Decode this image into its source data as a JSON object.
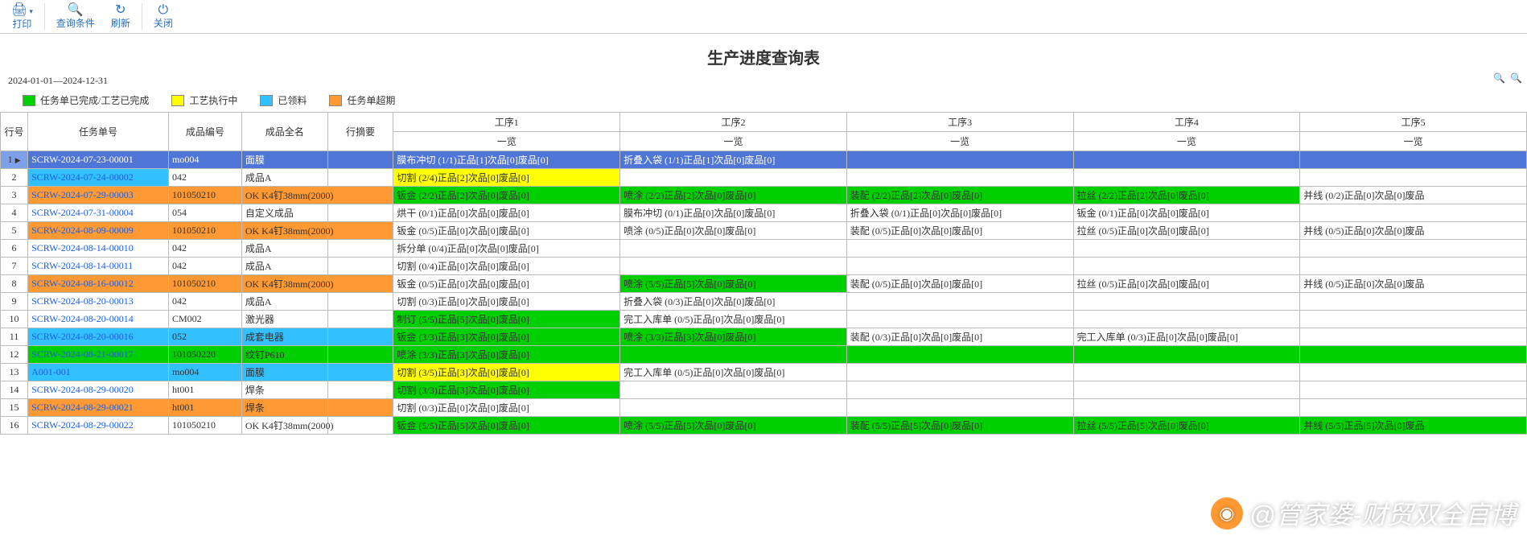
{
  "toolbar": {
    "print": {
      "label": "打印"
    },
    "query": {
      "label": "查询条件"
    },
    "refresh": {
      "label": "刷新"
    },
    "close": {
      "label": "关闭"
    }
  },
  "title": "生产进度查询表",
  "date_range": "2024-01-01—2024-12-31",
  "legend": [
    {
      "color": "#00d000",
      "label": "任务单已完成/工艺已完成"
    },
    {
      "color": "#ffff00",
      "label": "工艺执行中"
    },
    {
      "color": "#32c0ff",
      "label": "已领料"
    },
    {
      "color": "#ff9933",
      "label": "任务单超期"
    }
  ],
  "colors": {
    "green": "#00d000",
    "yellow": "#ffff00",
    "blue": "#4f76d6",
    "cyan": "#32c0ff",
    "orange": "#ff9933",
    "white": "#ffffff",
    "header_selected": "#7da0e8",
    "grid_border": "#bbbbbb"
  },
  "columns": {
    "rownum": "行号",
    "taskno": "任务单号",
    "prodcode": "成品编号",
    "prodname": "成品全名",
    "rowsum": "行摘要",
    "procs": [
      "工序1",
      "工序2",
      "工序3",
      "工序4",
      "工序5"
    ],
    "proc_sub": "一览"
  },
  "rows": [
    {
      "n": 1,
      "task": "SCRW-2024-07-23-00001",
      "task_bg": "blue",
      "code": "mo004",
      "code_bg": "blue",
      "name": "面膜",
      "name_bg": "blue",
      "rowsum_bg": "blue",
      "p": [
        {
          "t": "膜布冲切 (1/1)正品[1]次品[0]废品[0]",
          "bg": "blue"
        },
        {
          "t": "折叠入袋 (1/1)正品[1]次品[0]废品[0]",
          "bg": "blue"
        },
        {
          "t": "",
          "bg": "blue"
        },
        {
          "t": "",
          "bg": "blue"
        },
        {
          "t": "",
          "bg": "blue"
        }
      ]
    },
    {
      "n": 2,
      "task": "SCRW-2024-07-24-00002",
      "task_bg": "cyan",
      "code": "042",
      "name": "成品A",
      "p": [
        {
          "t": "切割 (2/4)正品[2]次品[0]废品[0]",
          "bg": "yellow"
        },
        {
          "t": ""
        },
        {
          "t": ""
        },
        {
          "t": ""
        },
        {
          "t": ""
        }
      ]
    },
    {
      "n": 3,
      "task": "SCRW-2024-07-29-00003",
      "task_bg": "orange",
      "code": "101050210",
      "code_bg": "orange",
      "name": "OK K4钉38mm(2000)",
      "name_bg": "orange",
      "rowsum_bg": "orange",
      "p": [
        {
          "t": "钣金 (2/2)正品[2]次品[0]废品[0]",
          "bg": "green"
        },
        {
          "t": "喷涂 (2/2)正品[2]次品[0]废品[0]",
          "bg": "green"
        },
        {
          "t": "装配 (2/2)正品[2]次品[0]废品[0]",
          "bg": "green"
        },
        {
          "t": "拉丝 (2/2)正品[2]次品[0]废品[0]",
          "bg": "green"
        },
        {
          "t": "并线 (0/2)正品[0]次品[0]废品"
        }
      ]
    },
    {
      "n": 4,
      "task": "SCRW-2024-07-31-00004",
      "code": "054",
      "name": "自定义成品",
      "p": [
        {
          "t": "烘干 (0/1)正品[0]次品[0]废品[0]"
        },
        {
          "t": "膜布冲切 (0/1)正品[0]次品[0]废品[0]"
        },
        {
          "t": "折叠入袋 (0/1)正品[0]次品[0]废品[0]"
        },
        {
          "t": "钣金 (0/1)正品[0]次品[0]废品[0]"
        },
        {
          "t": ""
        }
      ]
    },
    {
      "n": 5,
      "task": "SCRW-2024-08-09-00009",
      "task_bg": "orange",
      "code": "101050210",
      "code_bg": "orange",
      "name": "OK K4钉38mm(2000)",
      "name_bg": "orange",
      "rowsum_bg": "orange",
      "p": [
        {
          "t": "钣金 (0/5)正品[0]次品[0]废品[0]"
        },
        {
          "t": "喷涂 (0/5)正品[0]次品[0]废品[0]"
        },
        {
          "t": "装配 (0/5)正品[0]次品[0]废品[0]"
        },
        {
          "t": "拉丝 (0/5)正品[0]次品[0]废品[0]"
        },
        {
          "t": "并线 (0/5)正品[0]次品[0]废品"
        }
      ]
    },
    {
      "n": 6,
      "task": "SCRW-2024-08-14-00010",
      "code": "042",
      "name": "成品A",
      "p": [
        {
          "t": "拆分单 (0/4)正品[0]次品[0]废品[0]"
        },
        {
          "t": ""
        },
        {
          "t": ""
        },
        {
          "t": ""
        },
        {
          "t": ""
        }
      ]
    },
    {
      "n": 7,
      "task": "SCRW-2024-08-14-00011",
      "code": "042",
      "name": "成品A",
      "p": [
        {
          "t": "切割 (0/4)正品[0]次品[0]废品[0]"
        },
        {
          "t": ""
        },
        {
          "t": ""
        },
        {
          "t": ""
        },
        {
          "t": ""
        }
      ]
    },
    {
      "n": 8,
      "task": "SCRW-2024-08-16-00012",
      "task_bg": "orange",
      "code": "101050210",
      "code_bg": "orange",
      "name": "OK K4钉38mm(2000)",
      "name_bg": "orange",
      "rowsum_bg": "orange",
      "p": [
        {
          "t": "钣金 (0/5)正品[0]次品[0]废品[0]"
        },
        {
          "t": "喷涂 (5/5)正品[5]次品[0]废品[0]",
          "bg": "green"
        },
        {
          "t": "装配 (0/5)正品[0]次品[0]废品[0]"
        },
        {
          "t": "拉丝 (0/5)正品[0]次品[0]废品[0]"
        },
        {
          "t": "并线 (0/5)正品[0]次品[0]废品"
        }
      ]
    },
    {
      "n": 9,
      "task": "SCRW-2024-08-20-00013",
      "code": "042",
      "name": "成品A",
      "p": [
        {
          "t": "切割 (0/3)正品[0]次品[0]废品[0]"
        },
        {
          "t": "折叠入袋 (0/3)正品[0]次品[0]废品[0]"
        },
        {
          "t": ""
        },
        {
          "t": ""
        },
        {
          "t": ""
        }
      ]
    },
    {
      "n": 10,
      "task": "SCRW-2024-08-20-00014",
      "code": "CM002",
      "name": "激光器",
      "p": [
        {
          "t": "制订 (5/5)正品[5]次品[0]废品[0]",
          "bg": "green"
        },
        {
          "t": "完工入库单 (0/5)正品[0]次品[0]废品[0]"
        },
        {
          "t": ""
        },
        {
          "t": ""
        },
        {
          "t": ""
        }
      ]
    },
    {
      "n": 11,
      "task": "SCRW-2024-08-20-00016",
      "task_bg": "cyan",
      "code": "052",
      "code_bg": "cyan",
      "name": "成套电器",
      "name_bg": "cyan",
      "rowsum_bg": "cyan",
      "p": [
        {
          "t": "钣金 (3/3)正品[3]次品[0]废品[0]",
          "bg": "green"
        },
        {
          "t": "喷涂 (3/3)正品[3]次品[0]废品[0]",
          "bg": "green"
        },
        {
          "t": "装配 (0/3)正品[0]次品[0]废品[0]"
        },
        {
          "t": "完工入库单 (0/3)正品[0]次品[0]废品[0]"
        },
        {
          "t": ""
        }
      ]
    },
    {
      "n": 12,
      "task": "SCRW-2024-08-21-00017",
      "task_bg": "green",
      "code": "101050220",
      "code_bg": "green",
      "name": "纹钉P610",
      "name_bg": "green",
      "rowsum_bg": "green",
      "p": [
        {
          "t": "喷涂 (3/3)正品[3]次品[0]废品[0]",
          "bg": "green"
        },
        {
          "t": "",
          "bg": "green"
        },
        {
          "t": "",
          "bg": "green"
        },
        {
          "t": "",
          "bg": "green"
        },
        {
          "t": "",
          "bg": "green"
        }
      ]
    },
    {
      "n": 13,
      "task": "A001-001",
      "task_bg": "cyan",
      "code": "mo004",
      "code_bg": "cyan",
      "name": "面膜",
      "name_bg": "cyan",
      "rowsum_bg": "cyan",
      "p": [
        {
          "t": "切割 (3/5)正品[3]次品[0]废品[0]",
          "bg": "yellow"
        },
        {
          "t": "完工入库单 (0/5)正品[0]次品[0]废品[0]"
        },
        {
          "t": ""
        },
        {
          "t": ""
        },
        {
          "t": ""
        }
      ]
    },
    {
      "n": 14,
      "task": "SCRW-2024-08-29-00020",
      "code": "ht001",
      "name": "焊条",
      "p": [
        {
          "t": "切割 (3/3)正品[3]次品[0]废品[0]",
          "bg": "green"
        },
        {
          "t": ""
        },
        {
          "t": ""
        },
        {
          "t": ""
        },
        {
          "t": ""
        }
      ]
    },
    {
      "n": 15,
      "task": "SCRW-2024-08-29-00021",
      "task_bg": "orange",
      "code": "ht001",
      "code_bg": "orange",
      "name": "焊条",
      "name_bg": "orange",
      "rowsum_bg": "orange",
      "p": [
        {
          "t": "切割 (0/3)正品[0]次品[0]废品[0]"
        },
        {
          "t": ""
        },
        {
          "t": ""
        },
        {
          "t": ""
        },
        {
          "t": ""
        }
      ]
    },
    {
      "n": 16,
      "task": "SCRW-2024-08-29-00022",
      "code": "101050210",
      "name": "OK K4钉38mm(2000)",
      "p": [
        {
          "t": "钣金 (5/5)正品[5]次品[0]废品[0]",
          "bg": "green"
        },
        {
          "t": "喷涂 (5/5)正品[5]次品[0]废品[0]",
          "bg": "green"
        },
        {
          "t": "装配 (5/5)正品[5]次品[0]废品[0]",
          "bg": "green"
        },
        {
          "t": "拉丝 (5/5)正品[5]次品[0]废品[0]",
          "bg": "green"
        },
        {
          "t": "并线 (5/5)正品[5]次品[0]废品",
          "bg": "green"
        }
      ]
    }
  ],
  "watermark": "@管家婆-财贸双全官博"
}
